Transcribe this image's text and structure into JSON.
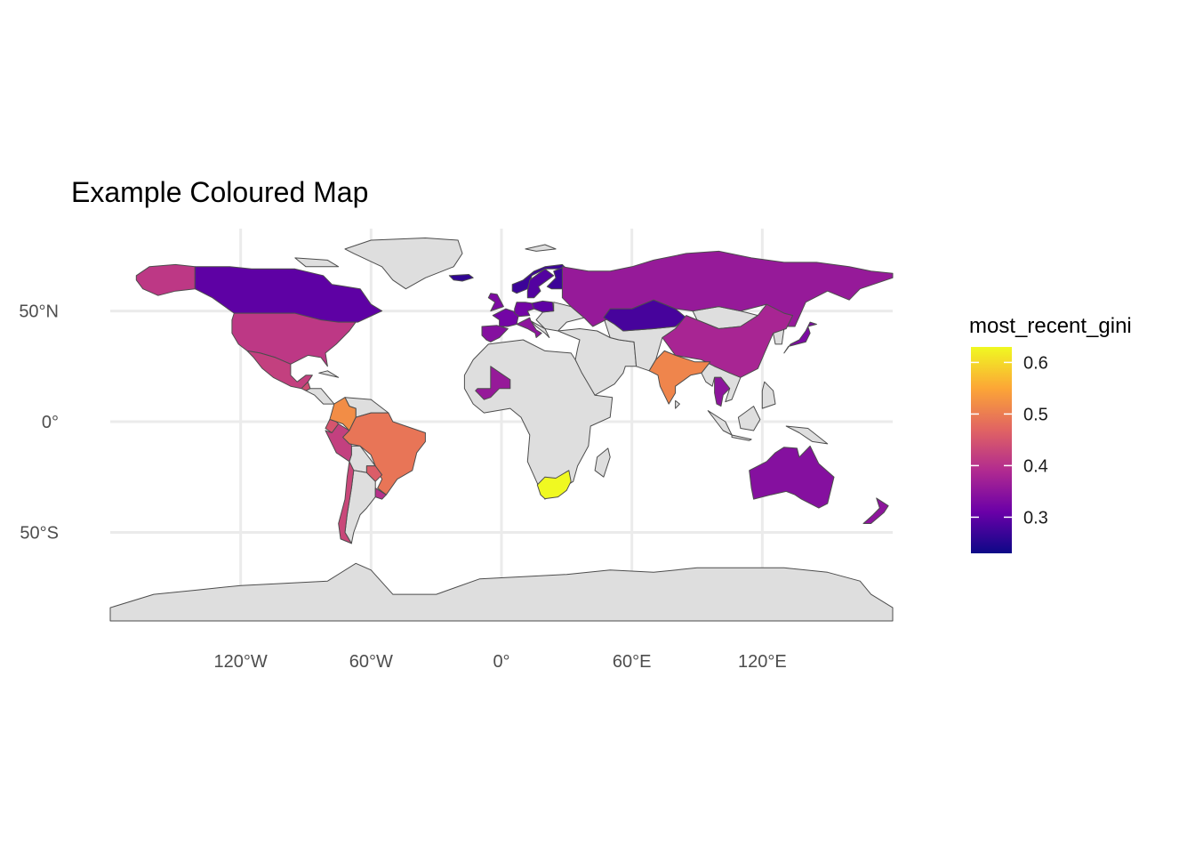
{
  "title": "Example Coloured Map",
  "chart_data": {
    "type": "choropleth",
    "title": "Example Coloured Map",
    "xlabel": "",
    "ylabel": "",
    "projection": "equirectangular",
    "xlim": [
      -180,
      180
    ],
    "ylim": [
      -90,
      84
    ],
    "grid": true,
    "x_ticks": [
      {
        "value": -120,
        "label": "120°W"
      },
      {
        "value": -60,
        "label": "60°W"
      },
      {
        "value": 0,
        "label": "0°"
      },
      {
        "value": 60,
        "label": "60°E"
      },
      {
        "value": 120,
        "label": "120°E"
      }
    ],
    "y_ticks": [
      {
        "value": 50,
        "label": "50°N"
      },
      {
        "value": 0,
        "label": "0°"
      },
      {
        "value": -50,
        "label": "50°S"
      }
    ],
    "fill_variable": "most_recent_gini",
    "no_data_color": "#dedede",
    "border_color": "#4d4d4d",
    "colorscale": "plasma",
    "colorscale_stops": [
      "#0d0887",
      "#6a00a8",
      "#b12a90",
      "#e16462",
      "#fca636",
      "#f0f921"
    ],
    "legend": {
      "title": "most_recent_gini",
      "position": "right",
      "range": [
        0.23,
        0.63
      ],
      "ticks": [
        {
          "value": 0.3,
          "label": "0.3"
        },
        {
          "value": 0.4,
          "label": "0.4"
        },
        {
          "value": 0.5,
          "label": "0.5"
        },
        {
          "value": 0.6,
          "label": "0.6"
        }
      ]
    },
    "regions": [
      {
        "name": "Alaska (United States)",
        "value": 0.41
      },
      {
        "name": "Canada",
        "value": 0.3
      },
      {
        "name": "United States",
        "value": 0.41
      },
      {
        "name": "Mexico",
        "value": 0.42
      },
      {
        "name": "Guatemala",
        "value": 0.44
      },
      {
        "name": "Colombia",
        "value": 0.52
      },
      {
        "name": "Ecuador",
        "value": 0.45
      },
      {
        "name": "Peru",
        "value": 0.42
      },
      {
        "name": "Brazil",
        "value": 0.49
      },
      {
        "name": "Chile",
        "value": 0.43
      },
      {
        "name": "Uruguay",
        "value": 0.4
      },
      {
        "name": "Paraguay",
        "value": 0.46
      },
      {
        "name": "Greenland",
        "value": null
      },
      {
        "name": "Iceland",
        "value": 0.26
      },
      {
        "name": "United Kingdom",
        "value": 0.33
      },
      {
        "name": "Norway",
        "value": 0.27
      },
      {
        "name": "Sweden",
        "value": 0.29
      },
      {
        "name": "Finland",
        "value": 0.27
      },
      {
        "name": "France",
        "value": 0.32
      },
      {
        "name": "Spain",
        "value": 0.34
      },
      {
        "name": "Germany",
        "value": 0.32
      },
      {
        "name": "Poland",
        "value": 0.3
      },
      {
        "name": "Italy",
        "value": 0.35
      },
      {
        "name": "Russia",
        "value": 0.36
      },
      {
        "name": "Kazakhstan",
        "value": 0.28
      },
      {
        "name": "China",
        "value": 0.38
      },
      {
        "name": "Japan",
        "value": 0.33
      },
      {
        "name": "India",
        "value": 0.51
      },
      {
        "name": "Thailand",
        "value": 0.35
      },
      {
        "name": "Mali",
        "value": 0.36
      },
      {
        "name": "South Africa",
        "value": 0.63
      },
      {
        "name": "Australia",
        "value": 0.34
      },
      {
        "name": "New Zealand",
        "value": 0.35
      },
      {
        "name": "Antarctica",
        "value": null
      }
    ]
  }
}
